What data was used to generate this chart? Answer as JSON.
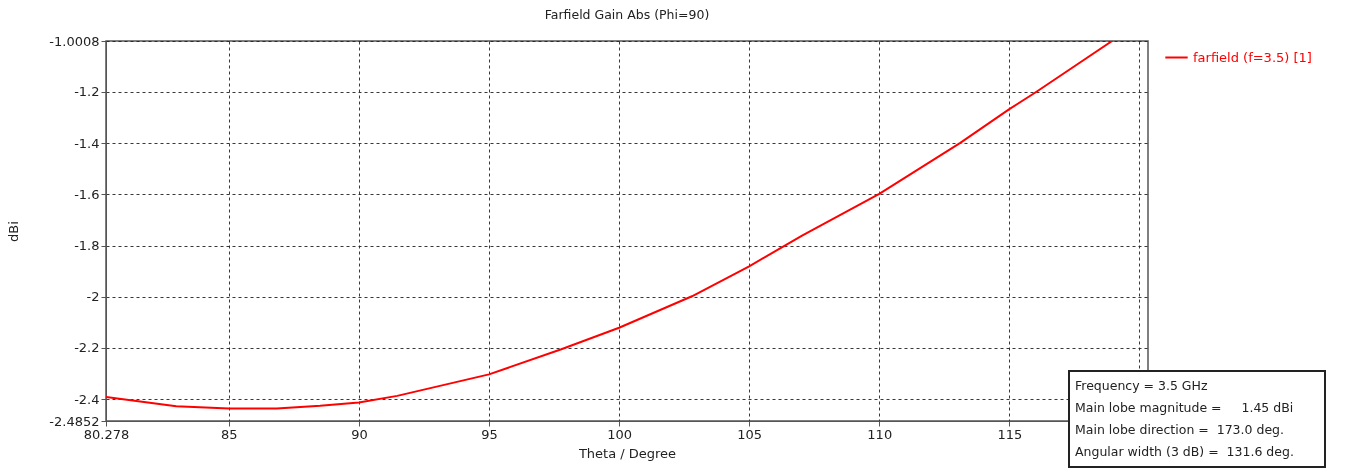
{
  "chart_data": {
    "type": "line",
    "title": "Farfield Gain Abs (Phi=90)",
    "xlabel": "Theta / Degree",
    "ylabel": "dBi",
    "series": [
      {
        "name": "farfield (f=3.5) [1]",
        "color": "#ff0000",
        "x": [
          80.278,
          82.98,
          85,
          86.84,
          88.51,
          90,
          91.47,
          95,
          97.78,
          100,
          102.8,
          105,
          107.05,
          110,
          113.1,
          115,
          116,
          118.95
        ],
        "values": [
          -2.391,
          -2.428,
          -2.436,
          -2.436,
          -2.426,
          -2.413,
          -2.387,
          -2.303,
          -2.205,
          -2.121,
          -1.998,
          -1.881,
          -1.76,
          -1.598,
          -1.4,
          -1.267,
          -1.202,
          -1.0008
        ]
      }
    ],
    "xlim": [
      80.278,
      120.33
    ],
    "xticks": [
      80.278,
      85,
      90,
      95,
      100,
      105,
      110,
      115,
      {
        "value": 120,
        "label": null
      }
    ],
    "ylim": [
      -2.4852,
      -1.0008
    ],
    "yticks": [
      -2.4852,
      -2.4,
      -2.2,
      -2,
      -1.8,
      -1.6,
      -1.4,
      -1.2,
      -1.0008
    ],
    "grid": true,
    "legend": "top right",
    "line_style": "solid",
    "marker": "none",
    "annotations": [
      "Frequency = 3.5 GHz",
      "Main lobe magnitude =     1.45 dBi",
      "Main lobe direction =  173.0 deg.",
      "Angular width (3 dB) =  131.6 deg."
    ]
  }
}
